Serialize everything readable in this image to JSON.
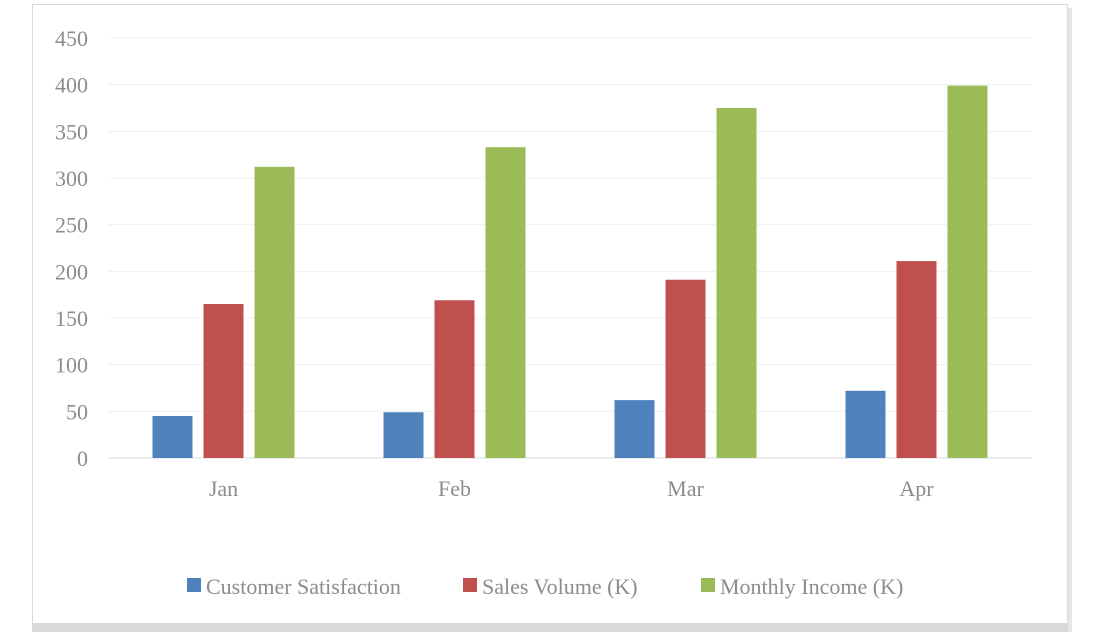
{
  "chart_data": {
    "type": "bar",
    "categories": [
      "Jan",
      "Feb",
      "Mar",
      "Apr"
    ],
    "series": [
      {
        "name": "Customer Satisfaction",
        "color": "#4f81bd",
        "values": [
          45,
          49,
          62,
          72
        ]
      },
      {
        "name": "Sales Volume (K)",
        "color": "#c0504d",
        "values": [
          165,
          169,
          191,
          211
        ]
      },
      {
        "name": "Monthly Income (K)",
        "color": "#9bbb59",
        "values": [
          312,
          333,
          375,
          399
        ]
      }
    ],
    "ylim": [
      0,
      450
    ],
    "yticks": [
      "0",
      "50",
      "100",
      "150",
      "200",
      "250",
      "300",
      "350",
      "400",
      "450"
    ],
    "grid": true,
    "legend_position": "bottom"
  }
}
